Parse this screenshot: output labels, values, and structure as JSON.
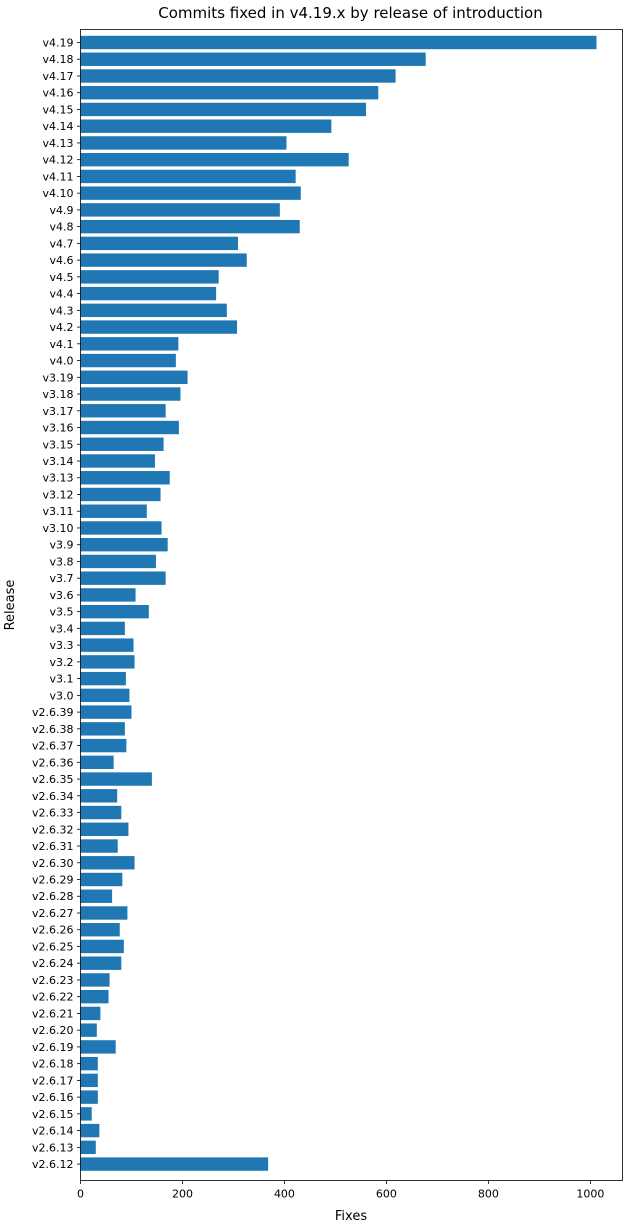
{
  "chart_data": {
    "type": "bar",
    "orientation": "horizontal",
    "title": "Commits fixed in v4.19.x by release of introduction",
    "xlabel": "Fixes",
    "ylabel": "Release",
    "xlim": [
      0,
      1063
    ],
    "xticks": [
      0,
      200,
      400,
      600,
      800,
      1000
    ],
    "bar_color": "#1f77b4",
    "grid": false,
    "categories": [
      "v4.19",
      "v4.18",
      "v4.17",
      "v4.16",
      "v4.15",
      "v4.14",
      "v4.13",
      "v4.12",
      "v4.11",
      "v4.10",
      "v4.9",
      "v4.8",
      "v4.7",
      "v4.6",
      "v4.5",
      "v4.4",
      "v4.3",
      "v4.2",
      "v4.1",
      "v4.0",
      "v3.19",
      "v3.18",
      "v3.17",
      "v3.16",
      "v3.15",
      "v3.14",
      "v3.13",
      "v3.12",
      "v3.11",
      "v3.10",
      "v3.9",
      "v3.8",
      "v3.7",
      "v3.6",
      "v3.5",
      "v3.4",
      "v3.3",
      "v3.2",
      "v3.1",
      "v3.0",
      "v2.6.39",
      "v2.6.38",
      "v2.6.37",
      "v2.6.36",
      "v2.6.35",
      "v2.6.34",
      "v2.6.33",
      "v2.6.32",
      "v2.6.31",
      "v2.6.30",
      "v2.6.29",
      "v2.6.28",
      "v2.6.27",
      "v2.6.26",
      "v2.6.25",
      "v2.6.24",
      "v2.6.23",
      "v2.6.22",
      "v2.6.21",
      "v2.6.20",
      "v2.6.19",
      "v2.6.18",
      "v2.6.17",
      "v2.6.16",
      "v2.6.15",
      "v2.6.14",
      "v2.6.13",
      "v2.6.12"
    ],
    "values": [
      1012,
      677,
      618,
      584,
      560,
      492,
      404,
      526,
      422,
      432,
      391,
      430,
      309,
      326,
      271,
      266,
      287,
      307,
      192,
      187,
      210,
      196,
      167,
      193,
      163,
      146,
      175,
      157,
      130,
      159,
      171,
      148,
      167,
      108,
      134,
      87,
      104,
      106,
      89,
      96,
      100,
      87,
      90,
      65,
      140,
      72,
      80,
      94,
      73,
      106,
      82,
      62,
      92,
      77,
      85,
      80,
      57,
      55,
      39,
      32,
      69,
      34,
      34,
      34,
      22,
      37,
      30,
      368
    ]
  }
}
